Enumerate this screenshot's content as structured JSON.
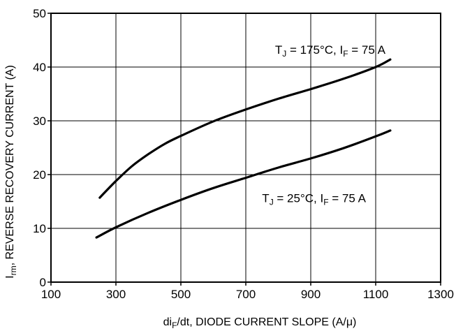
{
  "chart_data": {
    "type": "line",
    "title": "",
    "xlabel": {
      "main_pre": "di",
      "sub": "F",
      "main_post": "/dt, DIODE CURRENT SLOPE (A/μ)"
    },
    "ylabel": {
      "main_pre": "I",
      "sub": "rm",
      "main_post": ", REVERSE RECOVERY CURRENT (A)"
    },
    "xlim": [
      100,
      1300
    ],
    "ylim": [
      0,
      50
    ],
    "xticks": [
      100,
      300,
      500,
      700,
      900,
      1100,
      1300
    ],
    "yticks": [
      0,
      10,
      20,
      30,
      40,
      50
    ],
    "grid": true,
    "series": [
      {
        "name": "TJ = 175°C, IF = 75 A",
        "x": [
          250,
          300,
          350,
          400,
          450,
          500,
          600,
          700,
          800,
          900,
          1000,
          1100,
          1145
        ],
        "y": [
          15.7,
          18.8,
          21.6,
          23.8,
          25.7,
          27.2,
          29.9,
          32.1,
          34.1,
          35.9,
          37.8,
          40.0,
          41.4
        ]
      },
      {
        "name": "TJ = 25°C, IF = 75 A",
        "x": [
          240,
          300,
          400,
          500,
          600,
          700,
          800,
          900,
          1000,
          1100,
          1145
        ],
        "y": [
          8.3,
          10.2,
          12.9,
          15.3,
          17.5,
          19.4,
          21.3,
          23.0,
          24.9,
          27.1,
          28.2
        ]
      }
    ],
    "annotations": [
      {
        "parts": [
          {
            "t": "T",
            "sub": false
          },
          {
            "t": "J",
            "sub": true
          },
          {
            "t": " = 175°C, I",
            "sub": false
          },
          {
            "t": "F",
            "sub": true
          },
          {
            "t": " = 75 A",
            "sub": false
          }
        ]
      },
      {
        "parts": [
          {
            "t": "T",
            "sub": false
          },
          {
            "t": "J",
            "sub": true
          },
          {
            "t": " = 25°C, I",
            "sub": false
          },
          {
            "t": "F",
            "sub": true
          },
          {
            "t": " = 75 A",
            "sub": false
          }
        ]
      }
    ]
  }
}
